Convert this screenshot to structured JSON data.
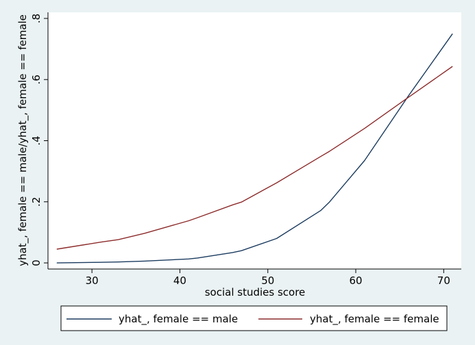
{
  "chart_data": {
    "type": "line",
    "xlabel": "social studies score",
    "ylabel": "yhat_, female == male/yhat_, female == female",
    "xlim": [
      25,
      72
    ],
    "ylim": [
      -0.02,
      0.82
    ],
    "xticks": [
      30,
      40,
      50,
      60,
      70
    ],
    "xtick_labels": [
      "30",
      "40",
      "50",
      "60",
      "70"
    ],
    "yticks": [
      0,
      0.2,
      0.4,
      0.6,
      0.8
    ],
    "ytick_labels": [
      "0",
      ".2",
      ".4",
      ".6",
      ".8"
    ],
    "grid": false,
    "legend_position": "bottom",
    "series": [
      {
        "name": "yhat_, female == male",
        "color": "#1A3A5E",
        "x": [
          26,
          31,
          33,
          36,
          41,
          42,
          46,
          47,
          51,
          56,
          57,
          61,
          66,
          71
        ],
        "y": [
          0.0,
          0.002,
          0.003,
          0.006,
          0.013,
          0.016,
          0.034,
          0.04,
          0.08,
          0.171,
          0.199,
          0.335,
          0.547,
          0.75
        ]
      },
      {
        "name": "yhat_, female == female",
        "color": "#8C2A2A",
        "x": [
          26,
          31,
          33,
          36,
          41,
          42,
          46,
          47,
          51,
          56,
          57,
          61,
          66,
          71
        ],
        "y": [
          0.045,
          0.068,
          0.076,
          0.097,
          0.138,
          0.148,
          0.19,
          0.199,
          0.262,
          0.348,
          0.365,
          0.44,
          0.542,
          0.643
        ]
      }
    ]
  }
}
